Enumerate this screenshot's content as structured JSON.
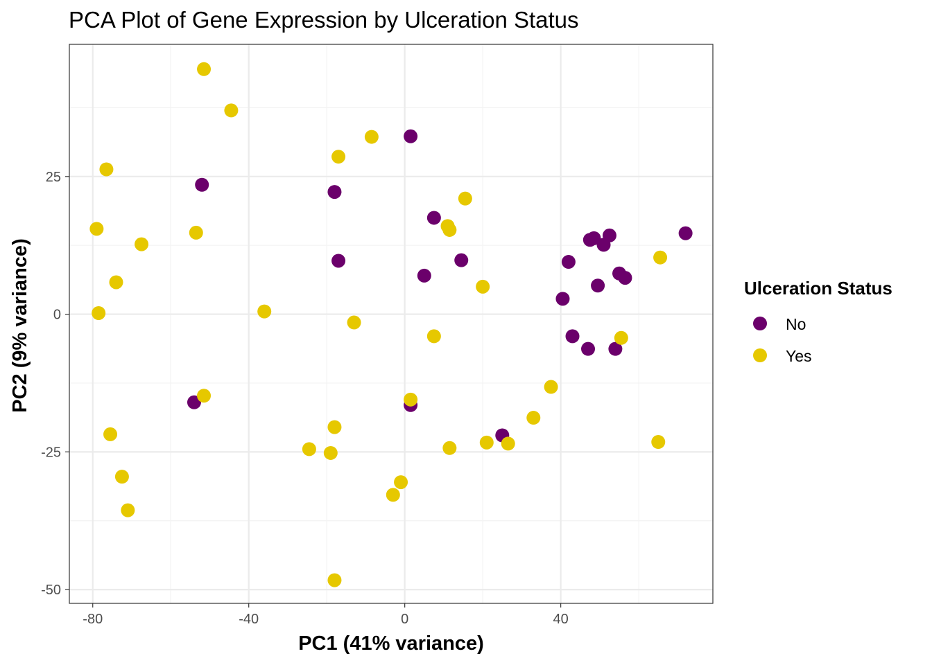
{
  "chart_data": {
    "type": "scatter",
    "title": "PCA Plot of Gene Expression by Ulceration Status",
    "xlabel": "PC1 (41% variance)",
    "ylabel": "PC2 (9% variance)",
    "xlim": [
      -86,
      79
    ],
    "ylim": [
      -52.5,
      49
    ],
    "x_ticks": [
      -80,
      -40,
      0,
      40
    ],
    "y_ticks": [
      -50,
      -25,
      0,
      25
    ],
    "grid": true,
    "legend": {
      "title": "Ulceration Status",
      "position": "right",
      "entries": [
        {
          "label": "No",
          "color": "#6b006b"
        },
        {
          "label": "Yes",
          "color": "#e6c800"
        }
      ]
    },
    "series": [
      {
        "name": "No",
        "color": "#6b006b",
        "points": [
          [
            -52,
            23.5
          ],
          [
            -18,
            22.2
          ],
          [
            -17,
            9.7
          ],
          [
            1.5,
            32.3
          ],
          [
            7.5,
            17.5
          ],
          [
            5,
            7
          ],
          [
            14.5,
            9.8
          ],
          [
            -54,
            -16
          ],
          [
            1.5,
            -16.5
          ],
          [
            25,
            -22
          ],
          [
            40.5,
            2.8
          ],
          [
            42,
            9.5
          ],
          [
            43,
            -4
          ],
          [
            47,
            -6.3
          ],
          [
            47.5,
            13.5
          ],
          [
            48.5,
            13.8
          ],
          [
            49.5,
            5.2
          ],
          [
            51,
            12.6
          ],
          [
            52.5,
            14.3
          ],
          [
            55,
            7.4
          ],
          [
            56.5,
            6.6
          ],
          [
            54,
            -6.3
          ],
          [
            72,
            14.7
          ]
        ]
      },
      {
        "name": "Yes",
        "color": "#e6c800",
        "points": [
          [
            -51.5,
            44.5
          ],
          [
            -44.5,
            37
          ],
          [
            -76.5,
            26.3
          ],
          [
            -79,
            15.5
          ],
          [
            -74,
            5.8
          ],
          [
            -78.5,
            0.2
          ],
          [
            -67.5,
            12.7
          ],
          [
            -53.5,
            14.8
          ],
          [
            -36,
            0.5
          ],
          [
            -17,
            28.6
          ],
          [
            -8.5,
            32.2
          ],
          [
            15.5,
            21
          ],
          [
            11,
            16
          ],
          [
            11.5,
            15.3
          ],
          [
            20,
            5
          ],
          [
            -13,
            -1.5
          ],
          [
            7.5,
            -4
          ],
          [
            -51.5,
            -14.8
          ],
          [
            -75.5,
            -21.8
          ],
          [
            -72.5,
            -29.5
          ],
          [
            -71,
            -35.6
          ],
          [
            -24.5,
            -24.5
          ],
          [
            -19,
            -25.2
          ],
          [
            -18,
            -20.5
          ],
          [
            -18,
            -48.3
          ],
          [
            1.5,
            -15.5
          ],
          [
            -1,
            -30.5
          ],
          [
            -3,
            -32.8
          ],
          [
            11.5,
            -24.3
          ],
          [
            21,
            -23.3
          ],
          [
            26.5,
            -23.5
          ],
          [
            33,
            -18.8
          ],
          [
            37.5,
            -13.2
          ],
          [
            55.5,
            -4.3
          ],
          [
            65.5,
            10.3
          ],
          [
            65,
            -23.2
          ]
        ]
      }
    ]
  }
}
